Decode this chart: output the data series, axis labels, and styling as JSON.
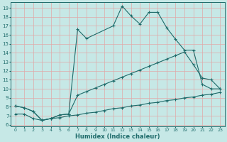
{
  "xlabel": "Humidex (Indice chaleur)",
  "xlim": [
    -0.5,
    23.5
  ],
  "ylim": [
    5.8,
    19.6
  ],
  "yticks": [
    6,
    7,
    8,
    9,
    10,
    11,
    12,
    13,
    14,
    15,
    16,
    17,
    18,
    19
  ],
  "xticks": [
    0,
    1,
    2,
    3,
    4,
    5,
    6,
    7,
    8,
    9,
    10,
    11,
    12,
    13,
    14,
    15,
    16,
    17,
    18,
    19,
    20,
    21,
    22,
    23
  ],
  "bg_color": "#c6e8e6",
  "line_color": "#1e6b6a",
  "grid_color": "#e0a8a8",
  "line1_x": [
    0,
    1,
    2,
    3,
    4,
    5,
    6,
    7,
    8,
    11,
    12,
    13,
    14,
    15,
    16,
    17,
    18,
    19,
    20,
    21,
    22,
    23
  ],
  "line1_y": [
    8.1,
    7.9,
    7.5,
    6.5,
    6.7,
    7.1,
    7.2,
    16.6,
    15.6,
    17.0,
    19.2,
    18.1,
    17.2,
    18.5,
    18.5,
    16.8,
    15.5,
    14.3,
    14.3,
    10.5,
    10.0,
    10.0
  ],
  "line2_x": [
    0,
    1,
    2,
    3,
    4,
    5,
    6,
    7,
    8,
    9,
    10,
    11,
    12,
    13,
    14,
    15,
    16,
    17,
    18,
    19,
    20,
    21,
    22,
    23
  ],
  "line2_y": [
    8.1,
    7.9,
    7.5,
    6.5,
    6.7,
    7.1,
    7.2,
    9.3,
    9.7,
    10.1,
    10.5,
    10.9,
    11.3,
    11.7,
    12.1,
    12.5,
    12.9,
    13.3,
    13.7,
    14.1,
    12.7,
    11.2,
    11.0,
    10.0
  ],
  "line3_x": [
    0,
    1,
    2,
    3,
    4,
    5,
    6,
    7,
    8,
    9,
    10,
    11,
    12,
    13,
    14,
    15,
    16,
    17,
    18,
    19,
    20,
    21,
    22,
    23
  ],
  "line3_y": [
    7.2,
    7.2,
    6.7,
    6.5,
    6.7,
    6.8,
    7.0,
    7.1,
    7.3,
    7.4,
    7.6,
    7.8,
    7.9,
    8.1,
    8.2,
    8.4,
    8.5,
    8.7,
    8.8,
    9.0,
    9.1,
    9.3,
    9.4,
    9.6
  ]
}
